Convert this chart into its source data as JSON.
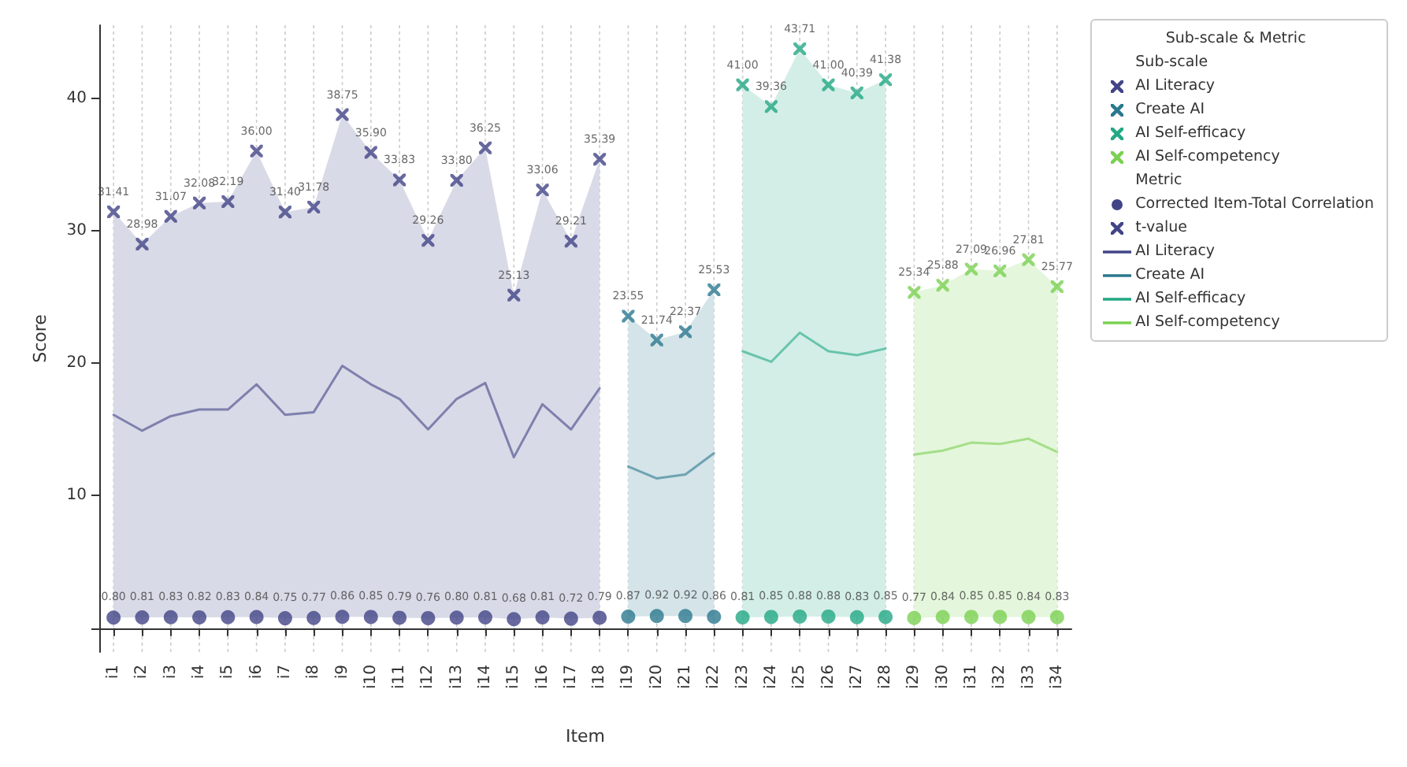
{
  "chart_data": {
    "type": "scatter",
    "xlabel": "Item",
    "ylabel": "Score",
    "legend_title": "Sub-scale & Metric",
    "annotations": [
      "Sub-scale",
      "Metric"
    ],
    "legend": "top right",
    "grid": "x",
    "categories": [
      "i1",
      "i2",
      "i3",
      "i4",
      "i5",
      "i6",
      "i7",
      "i8",
      "i9",
      "i10",
      "i11",
      "i12",
      "i13",
      "i14",
      "i15",
      "i16",
      "i17",
      "i18",
      "i19",
      "i20",
      "i21",
      "i22",
      "i23",
      "i24",
      "i25",
      "i26",
      "i27",
      "i28",
      "i29",
      "i30",
      "i31",
      "i32",
      "i33",
      "i34"
    ],
    "ylim": [
      -1.8,
      45.5
    ],
    "yticks": [
      {
        "value": 0,
        "label": null
      },
      10,
      20,
      30,
      40
    ],
    "series": [
      {
        "name": "AI Literacy",
        "type": "line",
        "color": "#414487",
        "x": [
          "i1",
          "i2",
          "i3",
          "i4",
          "i5",
          "i6",
          "i7",
          "i8",
          "i9",
          "i10",
          "i11",
          "i12",
          "i13",
          "i14",
          "i15",
          "i16",
          "i17",
          "i18"
        ],
        "values": [
          16.1,
          14.9,
          16.0,
          16.5,
          16.5,
          18.4,
          16.1,
          16.3,
          19.8,
          18.4,
          17.3,
          15.0,
          17.3,
          18.5,
          12.9,
          16.9,
          15.0,
          18.1
        ],
        "lower": [
          0.8,
          0.81,
          0.83,
          0.82,
          0.83,
          0.84,
          0.75,
          0.77,
          0.86,
          0.85,
          0.79,
          0.76,
          0.8,
          0.81,
          0.68,
          0.81,
          0.72,
          0.79
        ],
        "upper": [
          31.41,
          28.98,
          31.07,
          32.08,
          32.19,
          36.0,
          31.4,
          31.78,
          38.75,
          35.9,
          33.83,
          29.26,
          33.8,
          36.25,
          25.13,
          33.06,
          29.21,
          35.39
        ]
      },
      {
        "name": "Create AI",
        "type": "line",
        "color": "#2a788e",
        "x": [
          "i19",
          "i20",
          "i21",
          "i22"
        ],
        "values": [
          12.2,
          11.3,
          11.6,
          13.2
        ],
        "lower": [
          0.87,
          0.92,
          0.92,
          0.86
        ],
        "upper": [
          23.55,
          21.74,
          22.37,
          25.53
        ]
      },
      {
        "name": "AI Self-efficacy",
        "type": "line",
        "color": "#22a884",
        "x": [
          "i23",
          "i24",
          "i25",
          "i26",
          "i27",
          "i28"
        ],
        "values": [
          20.9,
          20.1,
          22.3,
          20.9,
          20.6,
          21.1
        ],
        "lower": [
          0.81,
          0.85,
          0.88,
          0.88,
          0.83,
          0.85
        ],
        "upper": [
          41.0,
          39.36,
          43.71,
          41.0,
          40.39,
          41.38
        ]
      },
      {
        "name": "AI Self-competency",
        "type": "line",
        "color": "#7ad151",
        "x": [
          "i29",
          "i30",
          "i31",
          "i32",
          "i33",
          "i34"
        ],
        "values": [
          13.1,
          13.4,
          14.0,
          13.9,
          14.3,
          13.3
        ],
        "lower": [
          0.77,
          0.84,
          0.85,
          0.85,
          0.84,
          0.83
        ],
        "upper": [
          25.34,
          25.88,
          27.09,
          26.96,
          27.81,
          25.77
        ]
      },
      {
        "name": "Corrected Item-Total Correlation",
        "type": "scatter",
        "marker": "circle",
        "values": [
          0.8,
          0.81,
          0.83,
          0.82,
          0.83,
          0.84,
          0.75,
          0.77,
          0.86,
          0.85,
          0.79,
          0.76,
          0.8,
          0.81,
          0.68,
          0.81,
          0.72,
          0.79,
          0.87,
          0.92,
          0.92,
          0.86,
          0.81,
          0.85,
          0.88,
          0.88,
          0.83,
          0.85,
          0.77,
          0.84,
          0.85,
          0.85,
          0.84,
          0.83
        ],
        "value_labels": [
          "0.80",
          "0.81",
          "0.83",
          "0.82",
          "0.83",
          "0.84",
          "0.75",
          "0.77",
          "0.86",
          "0.85",
          "0.79",
          "0.76",
          "0.80",
          "0.81",
          "0.68",
          "0.81",
          "0.72",
          "0.79",
          "0.87",
          "0.92",
          "0.92",
          "0.86",
          "0.81",
          "0.85",
          "0.88",
          "0.88",
          "0.83",
          "0.85",
          "0.77",
          "0.84",
          "0.85",
          "0.85",
          "0.84",
          "0.83"
        ],
        "colors": [
          "#414487",
          "#414487",
          "#414487",
          "#414487",
          "#414487",
          "#414487",
          "#414487",
          "#414487",
          "#414487",
          "#414487",
          "#414487",
          "#414487",
          "#414487",
          "#414487",
          "#414487",
          "#414487",
          "#414487",
          "#414487",
          "#2a788e",
          "#2a788e",
          "#2a788e",
          "#2a788e",
          "#22a884",
          "#22a884",
          "#22a884",
          "#22a884",
          "#22a884",
          "#22a884",
          "#7ad151",
          "#7ad151",
          "#7ad151",
          "#7ad151",
          "#7ad151",
          "#7ad151"
        ]
      },
      {
        "name": "t-value",
        "type": "scatter",
        "marker": "cross",
        "values": [
          31.41,
          28.98,
          31.07,
          32.08,
          32.19,
          36.0,
          31.4,
          31.78,
          38.75,
          35.9,
          33.83,
          29.26,
          33.8,
          36.25,
          25.13,
          33.06,
          29.21,
          35.39,
          23.55,
          21.74,
          22.37,
          25.53,
          41.0,
          39.36,
          43.71,
          41.0,
          40.39,
          41.38,
          25.34,
          25.88,
          27.09,
          26.96,
          27.81,
          25.77
        ],
        "value_labels": [
          "31.41",
          "28.98",
          "31.07",
          "32.08",
          "32.19",
          "36.00",
          "31.40",
          "31.78",
          "38.75",
          "35.90",
          "33.83",
          "29.26",
          "33.80",
          "36.25",
          "25.13",
          "33.06",
          "29.21",
          "35.39",
          "23.55",
          "21.74",
          "22.37",
          "25.53",
          "41.00",
          "39.36",
          "43.71",
          "41.00",
          "40.39",
          "41.38",
          "25.34",
          "25.88",
          "27.09",
          "26.96",
          "27.81",
          "25.77"
        ],
        "colors": [
          "#414487",
          "#414487",
          "#414487",
          "#414487",
          "#414487",
          "#414487",
          "#414487",
          "#414487",
          "#414487",
          "#414487",
          "#414487",
          "#414487",
          "#414487",
          "#414487",
          "#414487",
          "#414487",
          "#414487",
          "#414487",
          "#2a788e",
          "#2a788e",
          "#2a788e",
          "#2a788e",
          "#22a884",
          "#22a884",
          "#22a884",
          "#22a884",
          "#22a884",
          "#22a884",
          "#7ad151",
          "#7ad151",
          "#7ad151",
          "#7ad151",
          "#7ad151",
          "#7ad151"
        ]
      }
    ]
  }
}
